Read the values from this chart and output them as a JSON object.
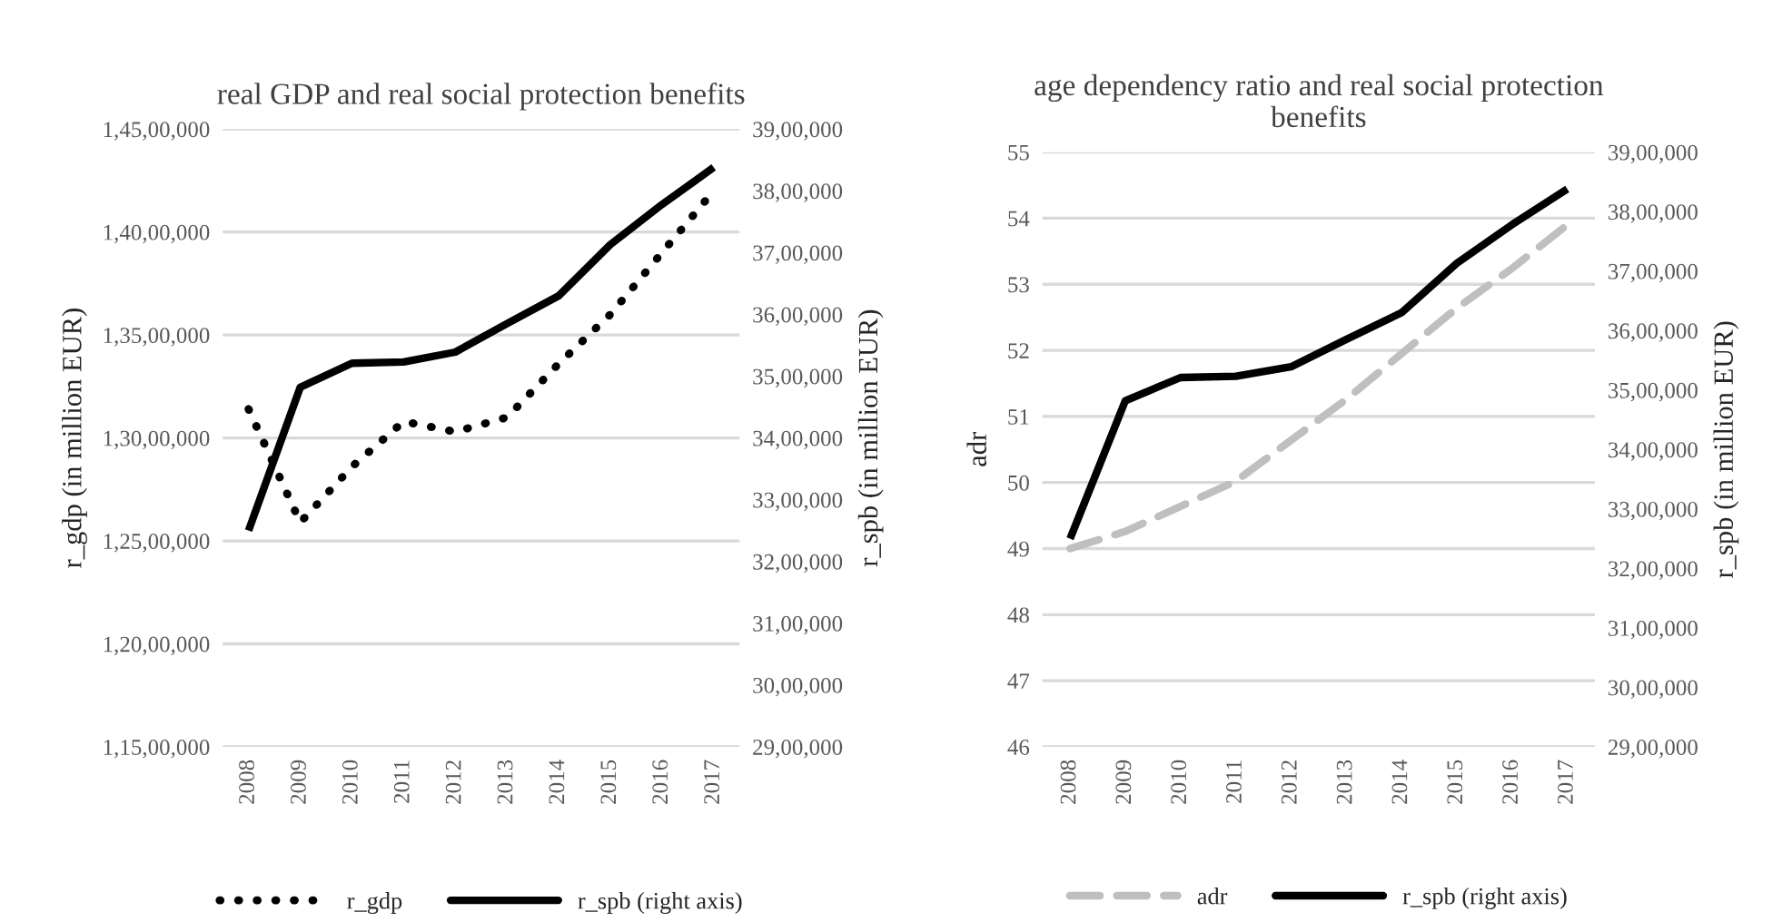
{
  "chart_data": [
    {
      "type": "line",
      "title": "real GDP and real social protection benefits",
      "ylabel": "r_gdp (in million EUR)",
      "y2label": "r_spb (in million EUR)",
      "categories": [
        "2008",
        "2009",
        "2010",
        "2011",
        "2012",
        "2013",
        "2014",
        "2015",
        "2016",
        "2017"
      ],
      "series": [
        {
          "name": "r_gdp",
          "color": "#000000",
          "line_style": "dotted",
          "values": [
            13140000,
            12590000,
            12860000,
            13080000,
            13030000,
            13100000,
            13360000,
            13600000,
            13900000,
            14200000
          ]
        },
        {
          "name": "r_spb (right axis)",
          "color": "#000000",
          "line_style": "solid",
          "axis": "y2",
          "values": [
            3250000,
            3482000,
            3521000,
            3523000,
            3539000,
            3585000,
            3630000,
            3713000,
            3778000,
            3838000
          ]
        }
      ],
      "ylim": [
        11500000,
        14500000
      ],
      "yticks": [
        {
          "value": 11500000,
          "label": "1,15,00,000"
        },
        {
          "value": 12000000,
          "label": "1,20,00,000"
        },
        {
          "value": 12500000,
          "label": "1,25,00,000"
        },
        {
          "value": 13000000,
          "label": "1,30,00,000"
        },
        {
          "value": 13500000,
          "label": "1,35,00,000"
        },
        {
          "value": 14000000,
          "label": "1,40,00,000"
        },
        {
          "value": 14500000,
          "label": "1,45,00,000"
        }
      ],
      "y2lim": [
        2900000,
        3900000
      ],
      "y2ticks": [
        {
          "value": 2900000,
          "label": "29,00,000"
        },
        {
          "value": 3000000,
          "label": "30,00,000"
        },
        {
          "value": 3100000,
          "label": "31,00,000"
        },
        {
          "value": 3200000,
          "label": "32,00,000"
        },
        {
          "value": 3300000,
          "label": "33,00,000"
        },
        {
          "value": 3400000,
          "label": "34,00,000"
        },
        {
          "value": 3500000,
          "label": "35,00,000"
        },
        {
          "value": 3600000,
          "label": "36,00,000"
        },
        {
          "value": 3700000,
          "label": "37,00,000"
        },
        {
          "value": 3800000,
          "label": "38,00,000"
        },
        {
          "value": 3900000,
          "label": "39,00,000"
        }
      ],
      "grid": "y",
      "legend": "bottom"
    },
    {
      "type": "line",
      "title": "age dependency ratio and real social protection benefits",
      "ylabel": "adr",
      "y2label": "r_spb (in million EUR)",
      "categories": [
        "2008",
        "2009",
        "2010",
        "2011",
        "2012",
        "2013",
        "2014",
        "2015",
        "2016",
        "2017"
      ],
      "series": [
        {
          "name": "adr",
          "color": "#bfbfbf",
          "line_style": "dashed",
          "values": [
            49.0,
            49.26,
            49.64,
            50.02,
            50.64,
            51.26,
            51.95,
            52.64,
            53.24,
            53.9
          ]
        },
        {
          "name": "r_spb (right axis)",
          "color": "#000000",
          "line_style": "solid",
          "axis": "y2",
          "values": [
            3250000,
            3482000,
            3521000,
            3523000,
            3539000,
            3585000,
            3630000,
            3713000,
            3778000,
            3838000
          ]
        }
      ],
      "ylim": [
        46,
        55
      ],
      "yticks": [
        46,
        47,
        48,
        49,
        50,
        51,
        52,
        53,
        54,
        55
      ],
      "y2lim": [
        2900000,
        3900000
      ],
      "y2ticks": [
        {
          "value": 2900000,
          "label": "29,00,000"
        },
        {
          "value": 3000000,
          "label": "30,00,000"
        },
        {
          "value": 3100000,
          "label": "31,00,000"
        },
        {
          "value": 3200000,
          "label": "32,00,000"
        },
        {
          "value": 3300000,
          "label": "33,00,000"
        },
        {
          "value": 3400000,
          "label": "34,00,000"
        },
        {
          "value": 3500000,
          "label": "35,00,000"
        },
        {
          "value": 3600000,
          "label": "36,00,000"
        },
        {
          "value": 3700000,
          "label": "37,00,000"
        },
        {
          "value": 3800000,
          "label": "38,00,000"
        },
        {
          "value": 3900000,
          "label": "39,00,000"
        }
      ],
      "grid": "y",
      "legend": "bottom"
    }
  ]
}
